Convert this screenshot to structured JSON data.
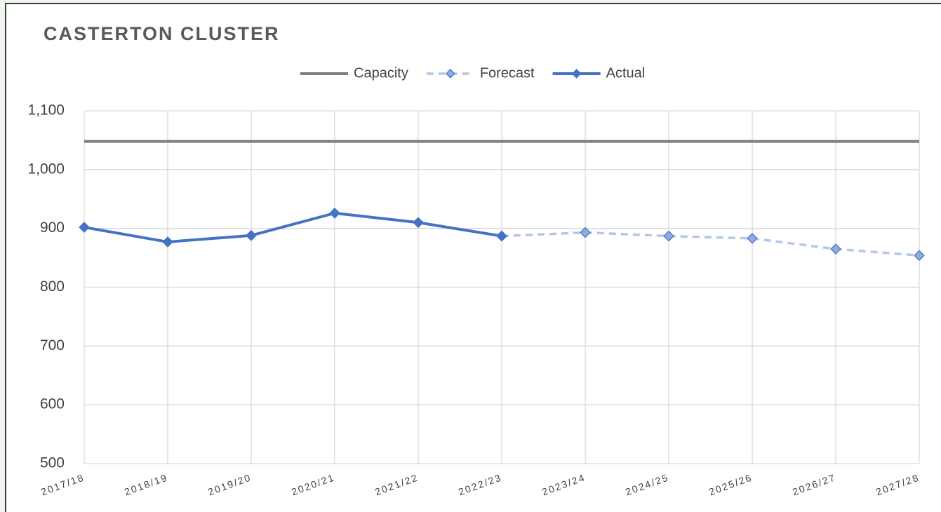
{
  "chart_data": {
    "type": "line",
    "title": "CASTERTON CLUSTER",
    "categories": [
      "2017/18",
      "2018/19",
      "2019/20",
      "2020/21",
      "2021/22",
      "2022/23",
      "2023/24",
      "2024/25",
      "2025/26",
      "2026/27",
      "2027/28"
    ],
    "series": [
      {
        "name": "Capacity",
        "color": "#7f7f7f",
        "values": [
          1048,
          1048,
          1048,
          1048,
          1048,
          1048,
          1048,
          1048,
          1048,
          1048,
          1048
        ]
      },
      {
        "name": "Forecast",
        "color": "#b4c7e7",
        "values": [
          null,
          null,
          null,
          null,
          null,
          887,
          893,
          887,
          883,
          865,
          854
        ]
      },
      {
        "name": "Actual",
        "color": "#4472c4",
        "values": [
          902,
          877,
          888,
          926,
          910,
          887,
          null,
          null,
          null,
          null,
          null
        ]
      }
    ],
    "ylim": [
      500,
      1100
    ],
    "yticks": [
      500,
      600,
      700,
      800,
      900,
      {
        "value": 1000,
        "label": "1,000"
      },
      {
        "value": 1100,
        "label": "1,100"
      }
    ],
    "grid": true,
    "legend": "top"
  }
}
